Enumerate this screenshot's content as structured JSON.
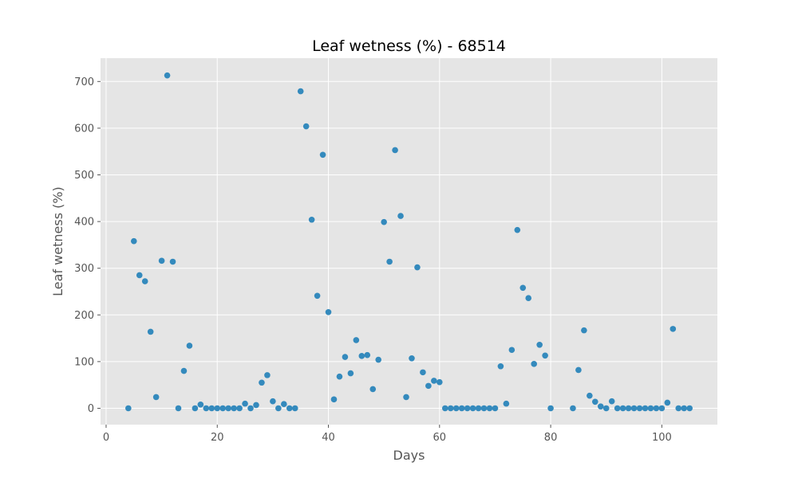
{
  "chart_data": {
    "type": "scatter",
    "title": "Leaf wetness (%) - 68514",
    "xlabel": "Days",
    "ylabel": "Leaf wetness (%)",
    "xlim": [
      -1,
      110
    ],
    "ylim": [
      -35,
      750
    ],
    "xticks": [
      0,
      20,
      40,
      60,
      80,
      100
    ],
    "yticks": [
      0,
      100,
      200,
      300,
      400,
      500,
      600,
      700
    ],
    "grid": true,
    "colors": {
      "plot_background": "#e5e5e5",
      "grid": "#ffffff",
      "point": "#348abd"
    },
    "series": [
      {
        "x": [
          4,
          5,
          6,
          7,
          8,
          9,
          10,
          11,
          12,
          13,
          14,
          15,
          16,
          17,
          18,
          19,
          20,
          21,
          22,
          23,
          24,
          25,
          26,
          27,
          28,
          29,
          30,
          31,
          32,
          33,
          34,
          35,
          36,
          37,
          38,
          39,
          40,
          41,
          42,
          43,
          44,
          45,
          46,
          47,
          48,
          49,
          50,
          51,
          52,
          53,
          54,
          55,
          56,
          57,
          58,
          59,
          60,
          61,
          62,
          63,
          64,
          65,
          66,
          67,
          68,
          69,
          70,
          71,
          72,
          73,
          74,
          75,
          76,
          77,
          78,
          79,
          80,
          84,
          85,
          86,
          87,
          88,
          89,
          90,
          91,
          92,
          93,
          94,
          95,
          96,
          97,
          98,
          99,
          100,
          101,
          102,
          103,
          104,
          105
        ],
        "y": [
          0,
          358,
          285,
          272,
          164,
          24,
          316,
          713,
          314,
          0,
          80,
          134,
          0,
          8,
          0,
          0,
          0,
          0,
          0,
          0,
          0,
          10,
          0,
          7,
          55,
          71,
          15,
          0,
          9,
          0,
          0,
          679,
          604,
          404,
          241,
          543,
          206,
          19,
          68,
          110,
          75,
          146,
          112,
          114,
          41,
          104,
          399,
          314,
          553,
          412,
          24,
          107,
          302,
          77,
          48,
          59,
          56,
          0,
          0,
          0,
          0,
          0,
          0,
          0,
          0,
          0,
          0,
          90,
          10,
          125,
          382,
          258,
          236,
          95,
          136,
          113,
          0,
          0,
          82,
          167,
          27,
          14,
          4,
          0,
          15,
          0,
          0,
          0,
          0,
          0,
          0,
          0,
          0,
          0,
          12,
          170,
          0,
          0,
          0
        ]
      }
    ]
  }
}
